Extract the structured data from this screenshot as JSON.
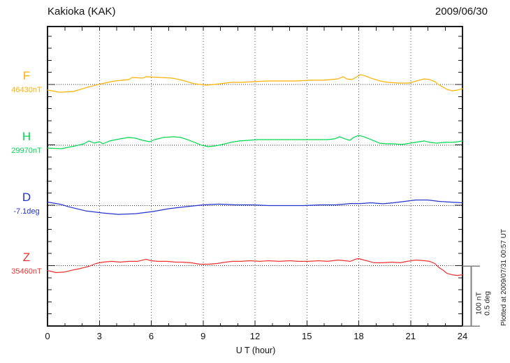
{
  "header": {
    "title": "Kakioka (KAK)",
    "date": "2009/06/30"
  },
  "xaxis": {
    "label": "U T (hour)",
    "ticks": [
      "0",
      "3",
      "6",
      "9",
      "12",
      "15",
      "18",
      "21",
      "24"
    ]
  },
  "scale_bar": {
    "line1": "100 nT",
    "line2": "0.5 deg"
  },
  "footer_note": "Plotted at 2009/07/31 00:57 UT",
  "colors": {
    "frame": "#1a1a1a",
    "grid": "#555555",
    "baseline": "#333333",
    "scale_bar": "#808080",
    "text": "#111111"
  },
  "chart_data": {
    "type": "line",
    "title": "Kakioka (KAK)",
    "subtitle": "2009/06/30",
    "xlabel": "U T (hour)",
    "x_range": [
      0,
      24
    ],
    "x_tick_hours": [
      0,
      3,
      6,
      9,
      12,
      15,
      18,
      21,
      24
    ],
    "x_gridline_hours": [
      3,
      6,
      9,
      12,
      15,
      18,
      21
    ],
    "grid": "dotted",
    "scale_note": "100 nT / 0.5 deg per division",
    "series": [
      {
        "id": "F",
        "label": "F",
        "baseline_label": "46430nT",
        "baseline_value": 46430,
        "unit": "nT",
        "color": "#FFB100",
        "points": [
          [
            0,
            -9.3
          ],
          [
            0.7,
            -12.8
          ],
          [
            1.5,
            -11.6
          ],
          [
            2.3,
            -4.7
          ],
          [
            3.1,
            1.2
          ],
          [
            3.9,
            5.8
          ],
          [
            4.7,
            8.1
          ],
          [
            4.9,
            11.6
          ],
          [
            5.5,
            10.5
          ],
          [
            5.7,
            12.8
          ],
          [
            6.5,
            11.6
          ],
          [
            7.2,
            10.5
          ],
          [
            7.8,
            7
          ],
          [
            8.5,
            1.2
          ],
          [
            9.2,
            -1.2
          ],
          [
            10,
            1.2
          ],
          [
            10.6,
            3.5
          ],
          [
            11.2,
            3.5
          ],
          [
            12,
            4.7
          ],
          [
            12.8,
            5.8
          ],
          [
            13.6,
            5.8
          ],
          [
            14.4,
            5.8
          ],
          [
            15.2,
            7
          ],
          [
            16,
            7
          ],
          [
            16.8,
            9.3
          ],
          [
            17.1,
            12.8
          ],
          [
            17.3,
            9.3
          ],
          [
            17.6,
            8.1
          ],
          [
            17.9,
            12.8
          ],
          [
            18.1,
            16.3
          ],
          [
            18.4,
            14
          ],
          [
            18.7,
            10.5
          ],
          [
            19.1,
            7
          ],
          [
            19.4,
            4.7
          ],
          [
            19.7,
            3.5
          ],
          [
            20.3,
            2.3
          ],
          [
            20.9,
            2.3
          ],
          [
            21.5,
            7
          ],
          [
            21.8,
            9.3
          ],
          [
            22.1,
            8.1
          ],
          [
            22.4,
            4.7
          ],
          [
            22.6,
            0
          ],
          [
            22.9,
            -4.7
          ],
          [
            23.1,
            -8.1
          ],
          [
            23.4,
            -10.5
          ],
          [
            23.7,
            -9.3
          ],
          [
            24,
            -7
          ]
        ]
      },
      {
        "id": "H",
        "label": "H",
        "baseline_label": "29970nT",
        "baseline_value": 29970,
        "unit": "nT",
        "color": "#00D94E",
        "points": [
          [
            0,
            -4.7
          ],
          [
            0.8,
            -5.8
          ],
          [
            1.6,
            -1.2
          ],
          [
            2.1,
            2.3
          ],
          [
            2.4,
            7
          ],
          [
            2.7,
            3.5
          ],
          [
            3,
            5.8
          ],
          [
            3.2,
            2.3
          ],
          [
            3.6,
            7
          ],
          [
            4.2,
            10.5
          ],
          [
            4.7,
            12.8
          ],
          [
            5.1,
            11.6
          ],
          [
            5.5,
            8.1
          ],
          [
            5.9,
            5.8
          ],
          [
            6.2,
            9.3
          ],
          [
            6.7,
            12.8
          ],
          [
            7.3,
            14
          ],
          [
            7.7,
            12.8
          ],
          [
            8.1,
            9.3
          ],
          [
            8.5,
            4.7
          ],
          [
            8.9,
            0
          ],
          [
            9.3,
            -2.3
          ],
          [
            9.7,
            -1.2
          ],
          [
            10.1,
            1.2
          ],
          [
            10.6,
            4.7
          ],
          [
            11.1,
            7
          ],
          [
            11.6,
            8.1
          ],
          [
            12.2,
            9.3
          ],
          [
            13,
            9.3
          ],
          [
            13.8,
            9.3
          ],
          [
            14.6,
            9.3
          ],
          [
            15.4,
            9.3
          ],
          [
            16.2,
            9.3
          ],
          [
            16.6,
            10.5
          ],
          [
            16.9,
            14
          ],
          [
            17.2,
            10.5
          ],
          [
            17.5,
            8.1
          ],
          [
            17.7,
            12.8
          ],
          [
            18,
            16.3
          ],
          [
            18.3,
            14
          ],
          [
            18.6,
            10.5
          ],
          [
            18.9,
            7
          ],
          [
            19.2,
            3.5
          ],
          [
            19.6,
            2.3
          ],
          [
            20,
            2.3
          ],
          [
            20.5,
            1.2
          ],
          [
            21,
            3.5
          ],
          [
            21.5,
            5.8
          ],
          [
            21.8,
            7
          ],
          [
            22.1,
            4.7
          ],
          [
            22.5,
            3.5
          ],
          [
            23,
            4.7
          ],
          [
            23.5,
            4.7
          ],
          [
            24,
            7
          ]
        ]
      },
      {
        "id": "D",
        "label": "D",
        "baseline_label": "-7.1deg",
        "baseline_value": -7.1,
        "unit": "deg",
        "color": "#2233CC",
        "points": [
          [
            0,
            0.029
          ],
          [
            0.8,
            0.009
          ],
          [
            1.2,
            -0.009
          ],
          [
            2.2,
            -0.044
          ],
          [
            3.2,
            -0.061
          ],
          [
            4.1,
            -0.073
          ],
          [
            5.1,
            -0.067
          ],
          [
            6.1,
            -0.049
          ],
          [
            7,
            -0.026
          ],
          [
            8,
            -0.009
          ],
          [
            9,
            0.006
          ],
          [
            9.9,
            0.012
          ],
          [
            10.9,
            0.006
          ],
          [
            11.9,
            0.006
          ],
          [
            12.8,
            0
          ],
          [
            13.8,
            0
          ],
          [
            14.8,
            0
          ],
          [
            15.8,
            0.006
          ],
          [
            16.7,
            0.006
          ],
          [
            17.5,
            0.017
          ],
          [
            18.1,
            0.017
          ],
          [
            18.7,
            0.023
          ],
          [
            19.4,
            0.015
          ],
          [
            20,
            0.023
          ],
          [
            20.7,
            0.035
          ],
          [
            21.3,
            0.046
          ],
          [
            22,
            0.046
          ],
          [
            22.6,
            0.035
          ],
          [
            23.3,
            0.029
          ],
          [
            24,
            0.023
          ]
        ]
      },
      {
        "id": "Z",
        "label": "Z",
        "baseline_label": "35460nT",
        "baseline_value": 35460,
        "unit": "nT",
        "color": "#EE3030",
        "points": [
          [
            0,
            -8.1
          ],
          [
            0.5,
            -11.6
          ],
          [
            1,
            -10.5
          ],
          [
            1.5,
            -7
          ],
          [
            1.9,
            -4.7
          ],
          [
            2.4,
            -1.2
          ],
          [
            2.8,
            3.5
          ],
          [
            3.2,
            5.8
          ],
          [
            3.7,
            7
          ],
          [
            4.2,
            5.8
          ],
          [
            4.7,
            7
          ],
          [
            5.2,
            7
          ],
          [
            5.7,
            10.5
          ],
          [
            6,
            8.1
          ],
          [
            6.4,
            7
          ],
          [
            6.9,
            7
          ],
          [
            7.4,
            5.8
          ],
          [
            7.8,
            5.8
          ],
          [
            8.3,
            4.7
          ],
          [
            8.8,
            2.3
          ],
          [
            9.3,
            2.3
          ],
          [
            9.8,
            3.5
          ],
          [
            10.3,
            5.8
          ],
          [
            10.7,
            7
          ],
          [
            11.2,
            7
          ],
          [
            11.7,
            8.1
          ],
          [
            12.3,
            7
          ],
          [
            12.8,
            8.1
          ],
          [
            13.4,
            7
          ],
          [
            14,
            8.1
          ],
          [
            14.5,
            7
          ],
          [
            15.1,
            7
          ],
          [
            15.7,
            8.1
          ],
          [
            16.2,
            7
          ],
          [
            16.8,
            9.3
          ],
          [
            17.2,
            8.1
          ],
          [
            17.5,
            7
          ],
          [
            17.8,
            10.5
          ],
          [
            18,
            11.6
          ],
          [
            18.3,
            9.3
          ],
          [
            18.6,
            7
          ],
          [
            18.9,
            4.7
          ],
          [
            19.4,
            4.7
          ],
          [
            19.9,
            5.8
          ],
          [
            20.4,
            4.7
          ],
          [
            20.8,
            7
          ],
          [
            21.3,
            9.3
          ],
          [
            21.8,
            8.1
          ],
          [
            22.1,
            7
          ],
          [
            22.4,
            3.5
          ],
          [
            22.6,
            -2.3
          ],
          [
            22.9,
            -8.1
          ],
          [
            23.1,
            -12.8
          ],
          [
            23.4,
            -15.1
          ],
          [
            23.7,
            -16.3
          ],
          [
            24,
            -15.1
          ]
        ]
      }
    ]
  }
}
